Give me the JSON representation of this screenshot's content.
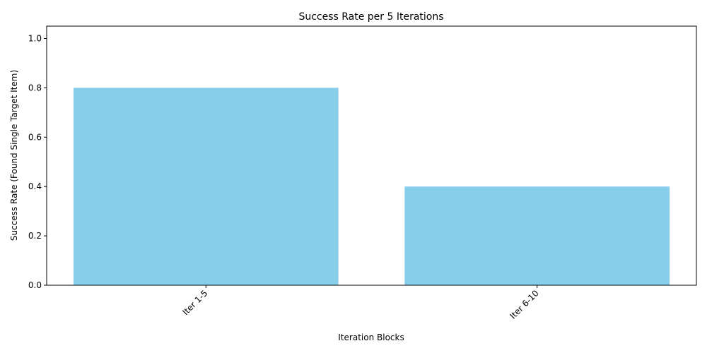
{
  "chart_data": {
    "type": "bar",
    "title": "Success Rate per 5 Iterations",
    "xlabel": "Iteration Blocks",
    "ylabel": "Success Rate (Found Single Target Item)",
    "categories": [
      "Iter 1-5",
      "Iter 6-10"
    ],
    "values": [
      0.8,
      0.4
    ],
    "ylim": [
      0,
      1.05
    ],
    "yticks": [
      0.0,
      0.2,
      0.4,
      0.6,
      0.8,
      1.0
    ],
    "ytick_labels": [
      "0.0",
      "0.2",
      "0.4",
      "0.6",
      "0.8",
      "1.0"
    ],
    "bar_color": "#87CEEB",
    "grid": false,
    "legend": "none"
  }
}
